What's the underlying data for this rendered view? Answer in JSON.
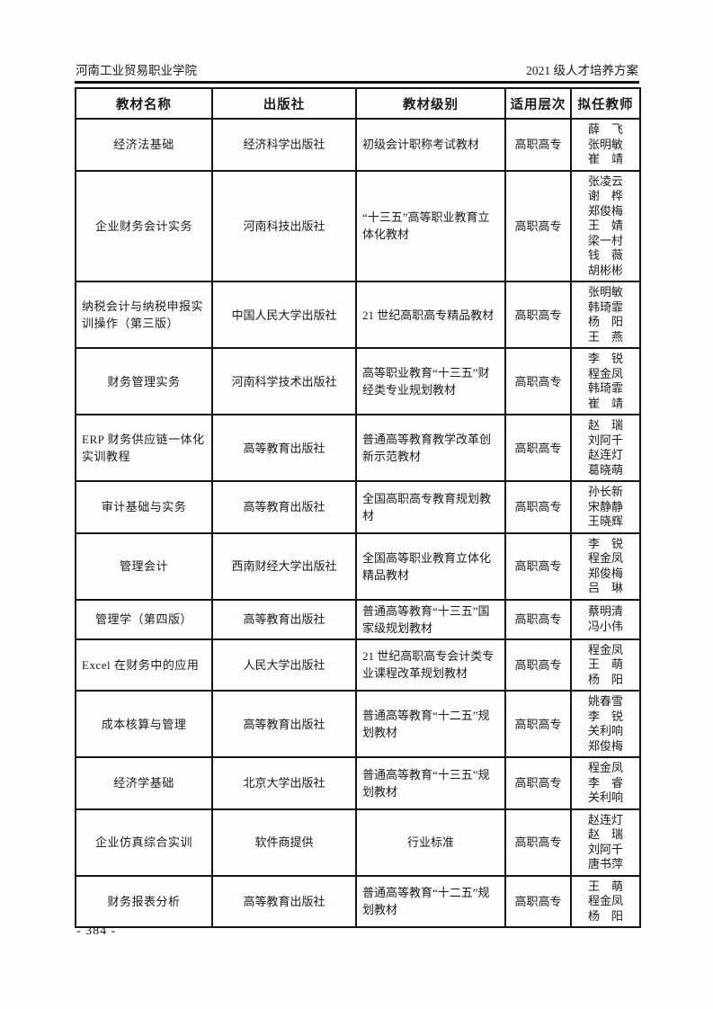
{
  "page_header": {
    "school": "河南工业贸易职业学院",
    "plan": "2021 级人才培养方案"
  },
  "table": {
    "columns": [
      "教材名称",
      "出版社",
      "教材级别",
      "适用层次",
      "拟任教师"
    ],
    "rows": [
      {
        "name": "经济法基础",
        "publisher": "经济科学出版社",
        "level": "初级会计职称考试教材",
        "target": "高职高专",
        "teachers": [
          "薛　飞",
          "张明敏",
          "崔　靖"
        ]
      },
      {
        "name": "企业财务会计实务",
        "publisher": "河南科技出版社",
        "level": "“十三五”高等职业教育立体化教材",
        "target": "高职高专",
        "teachers": [
          "张凌云",
          "谢　桦",
          "郑俊梅",
          "王　婧",
          "梁一村",
          "钱　薇",
          "胡彬彬"
        ]
      },
      {
        "name": "纳税会计与纳税申报实训操作（第三版）",
        "publisher": "中国人民大学出版社",
        "level": "21 世纪高职高专精品教材",
        "target": "高职高专",
        "teachers": [
          "张明敏",
          "韩琦霏",
          "杨　阳",
          "王　燕"
        ]
      },
      {
        "name": "财务管理实务",
        "publisher": "河南科学技术出版社",
        "level": "高等职业教育“十三五”财经类专业规划教材",
        "target": "高职高专",
        "teachers": [
          "李　锐",
          "程金凤",
          "韩琦霏",
          "崔　靖"
        ]
      },
      {
        "name": "ERP 财务供应链一体化实训教程",
        "publisher": "高等教育出版社",
        "level": "普通高等教育教学改革创新示范教材",
        "target": "高职高专",
        "teachers": [
          "赵　瑞",
          "刘阿千",
          "赵连灯",
          "葛晓萌"
        ]
      },
      {
        "name": "审计基础与实务",
        "publisher": "高等教育出版社",
        "level": "全国高职高专教育规划教材",
        "target": "高职高专",
        "teachers": [
          "孙长新",
          "宋静静",
          "王晓辉"
        ]
      },
      {
        "name": "管理会计",
        "publisher": "西南财经大学出版社",
        "level": "全国高等职业教育立体化精品教材",
        "target": "高职高专",
        "teachers": [
          "李　锐",
          "程金凤",
          "郑俊梅",
          "吕　琳"
        ]
      },
      {
        "name": "管理学（第四版）",
        "publisher": "高等教育出版社",
        "level": "普通高等教育“十三五”国家级规划教材",
        "target": "高职高专",
        "teachers": [
          "蔡明清",
          "冯小伟"
        ]
      },
      {
        "name": "Excel 在财务中的应用",
        "publisher": "人民大学出版社",
        "level": "21 世纪高职高专会计类专业课程改革规划教材",
        "target": "高职高专",
        "teachers": [
          "程金凤",
          "王　萌",
          "杨　阳"
        ]
      },
      {
        "name": "成本核算与管理",
        "publisher": "高等教育出版社",
        "level": "普通高等教育“十二五”规划教材",
        "target": "高职高专",
        "teachers": [
          "姚春雪",
          "李　锐",
          "关利响",
          "郑俊梅"
        ]
      },
      {
        "name": "经济学基础",
        "publisher": "北京大学出版社",
        "level": "普通高等教育“十三五”规划教材",
        "target": "高职高专",
        "teachers": [
          "程金凤",
          "李　睿",
          "关利响"
        ]
      },
      {
        "name": "企业仿真综合实训",
        "publisher": "软件商提供",
        "level": "行业标准",
        "target": "高职高专",
        "teachers": [
          "赵连灯",
          "赵　瑞",
          "刘阿千",
          "唐书萍"
        ]
      },
      {
        "name": "财务报表分析",
        "publisher": "高等教育出版社",
        "level": "普通高等教育“十二五”规划教材",
        "target": "高职高专",
        "teachers": [
          "王　萌",
          "程金凤",
          "杨　阳"
        ]
      }
    ]
  },
  "footer": {
    "page_number": "- 384 -"
  }
}
